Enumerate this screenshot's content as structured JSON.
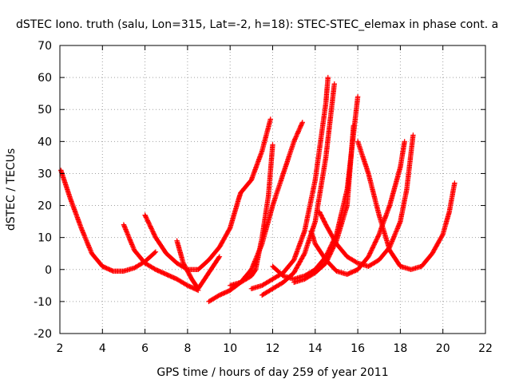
{
  "chart_data": {
    "type": "scatter",
    "title": "dSTEC Iono. truth (salu, Lon=315, Lat=-2, h=18): STEC-STEC_elemax in phase cont. a",
    "xlabel": "GPS time / hours of day 259 of year 2011",
    "ylabel": "dSTEC  / TECUs",
    "xlim": [
      2,
      22
    ],
    "ylim": [
      -20,
      70
    ],
    "xticks": [
      2,
      4,
      6,
      8,
      10,
      12,
      14,
      16,
      18,
      20,
      22
    ],
    "yticks": [
      -20,
      -10,
      0,
      10,
      20,
      30,
      40,
      50,
      60,
      70
    ],
    "grid": true,
    "marker": "+",
    "series_color": "#ff0000",
    "series": [
      {
        "x": [
          2.05,
          2.5,
          3.0,
          3.5,
          4.0,
          4.5,
          5.0,
          5.5,
          6.0,
          6.5
        ],
        "y": [
          31,
          22,
          13,
          5,
          1,
          -0.5,
          -0.5,
          0.5,
          2.5,
          5.5
        ]
      },
      {
        "x": [
          5.0,
          5.5,
          6.0,
          6.5,
          7.0,
          7.5,
          8.0,
          8.5
        ],
        "y": [
          14,
          6,
          2,
          0,
          -1.5,
          -3,
          -5,
          -6.5
        ]
      },
      {
        "x": [
          6.0,
          6.5,
          7.0,
          7.5,
          8.0,
          8.5,
          9.0,
          9.5,
          10.0,
          10.4,
          10.5,
          11.0,
          11.5,
          11.9
        ],
        "y": [
          17,
          10,
          5,
          2,
          0,
          0,
          3,
          7,
          13,
          22,
          24,
          28,
          37,
          47
        ]
      },
      {
        "x": [
          7.5,
          7.8,
          8.2,
          8.5,
          9.0,
          9.5
        ],
        "y": [
          9,
          2,
          -3,
          -6,
          -1,
          4
        ]
      },
      {
        "x": [
          9.0,
          9.5,
          10.0,
          10.5,
          11.0,
          11.5,
          12.0,
          12.5,
          13.0,
          13.4
        ],
        "y": [
          -10,
          -8,
          -6.5,
          -4,
          0,
          8,
          20,
          30,
          40,
          46
        ]
      },
      {
        "x": [
          10.0,
          10.5,
          11.0,
          11.2,
          11.5,
          11.8,
          12.0
        ],
        "y": [
          -5,
          -4,
          -2,
          0,
          10,
          23,
          39
        ]
      },
      {
        "x": [
          11.0,
          11.5,
          12.0,
          12.5,
          13.0,
          13.5,
          14.0,
          14.5,
          14.6
        ],
        "y": [
          -6,
          -5,
          -3,
          -1,
          3,
          12,
          28,
          52,
          60
        ]
      },
      {
        "x": [
          11.5,
          12.0,
          12.5,
          13.0,
          13.5,
          14.0,
          14.5,
          14.9
        ],
        "y": [
          -8,
          -6,
          -4,
          -1,
          5,
          15,
          35,
          58
        ]
      },
      {
        "x": [
          12.0,
          12.5,
          13.0,
          13.5,
          14.0,
          14.5,
          15.0,
          15.5,
          16.0
        ],
        "y": [
          1,
          -2,
          -3,
          -2,
          0,
          4,
          11,
          25,
          54
        ]
      },
      {
        "x": [
          13.0,
          13.5,
          14.0,
          14.5,
          15.0,
          15.5,
          15.8
        ],
        "y": [
          -4,
          -3,
          -1,
          2,
          9,
          20,
          45
        ]
      },
      {
        "x": [
          13.8,
          14.0,
          14.5,
          15.0,
          15.5,
          16.0,
          16.5,
          17.0,
          17.5,
          18.0,
          18.2
        ],
        "y": [
          12,
          8,
          3,
          -0.5,
          -1.5,
          0,
          4,
          11,
          20,
          32,
          40
        ]
      },
      {
        "x": [
          14.2,
          14.5,
          15.0,
          15.5,
          16.0,
          16.5,
          17.0,
          17.5,
          18.0,
          18.3,
          18.6
        ],
        "y": [
          18,
          14,
          8,
          4,
          2,
          1,
          3,
          7,
          15,
          25,
          42
        ]
      },
      {
        "x": [
          16.0,
          16.5,
          17.0,
          17.5,
          18.0,
          18.5,
          19.0,
          19.5,
          20.0,
          20.3,
          20.55
        ],
        "y": [
          40,
          30,
          17,
          6,
          1,
          0,
          1,
          5,
          11,
          18,
          27
        ]
      }
    ]
  }
}
